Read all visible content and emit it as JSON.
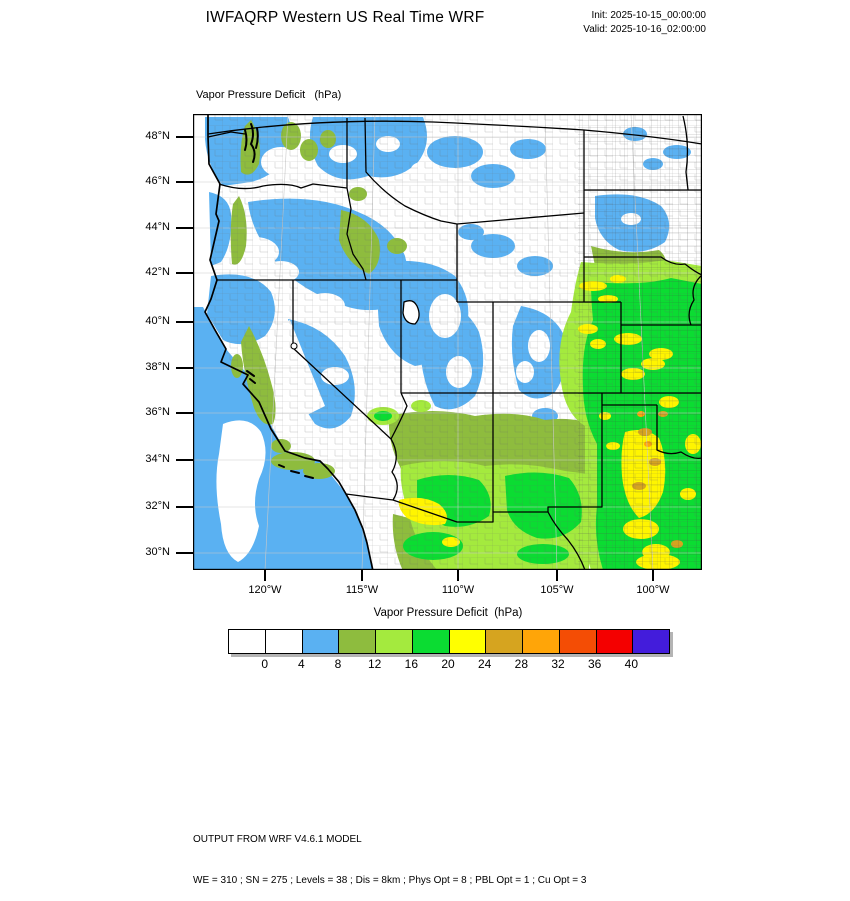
{
  "header": {
    "title": "IWFAQRP Western US Real Time WRF",
    "init_line": "Init: 2025-10-15_00:00:00",
    "valid_line": "Valid: 2025-10-16_02:00:00"
  },
  "plot": {
    "title": "Vapor Pressure Deficit   (hPa)"
  },
  "axes": {
    "lat_tick_labels": [
      "48°N",
      "46°N",
      "44°N",
      "42°N",
      "40°N",
      "38°N",
      "36°N",
      "34°N",
      "32°N",
      "30°N"
    ],
    "lon_tick_labels": [
      "120°W",
      "115°W",
      "110°W",
      "105°W",
      "100°W"
    ]
  },
  "colorbar": {
    "title": "Vapor Pressure Deficit  (hPa)",
    "tick_labels": [
      "0",
      "4",
      "8",
      "12",
      "16",
      "20",
      "24",
      "28",
      "32",
      "36",
      "40"
    ],
    "colors": [
      "#FFFFFF",
      "#FFFFFF",
      "#5AB1F2",
      "#8EBC3E",
      "#A4EA3E",
      "#0BDC32",
      "#FFFF00",
      "#D6A41F",
      "#FFA508",
      "#F44D05",
      "#F40000",
      "#431CDB"
    ]
  },
  "footer": {
    "line1": "OUTPUT FROM WRF V4.6.1 MODEL",
    "line2": "WE = 310 ; SN = 275 ; Levels = 38 ; Dis = 8km ; Phys Opt = 8 ; PBL Opt = 1 ; Cu Opt = 3"
  },
  "chart_data": {
    "type": "heatmap",
    "subtype": "filled-contour-map",
    "variable": "Vapor Pressure Deficit",
    "units": "hPa",
    "title": "IWFAQRP Western US Real Time WRF",
    "model": "WRF V4.6.1",
    "init_time": "2025-10-15_00:00:00",
    "valid_time": "2025-10-16_02:00:00",
    "lat_ticks_deg_n": [
      48,
      46,
      44,
      42,
      40,
      38,
      36,
      34,
      32,
      30
    ],
    "lon_ticks_deg_w": [
      120,
      115,
      110,
      105,
      100
    ],
    "contour_levels_hpa": [
      0,
      4,
      8,
      12,
      16,
      20,
      24,
      28,
      32,
      36,
      40
    ],
    "palette": [
      "#FFFFFF",
      "#FFFFFF",
      "#5AB1F2",
      "#8EBC3E",
      "#A4EA3E",
      "#0BDC32",
      "#FFFF00",
      "#D6A41F",
      "#FFA508",
      "#F44D05",
      "#F40000",
      "#431CDB"
    ],
    "legend_position": "bottom",
    "grid": "light gray graticule every 2 deg lat / 5 deg lon; county and state boundaries overlaid",
    "regions": [
      {
        "area": "Pacific Ocean south of ~40N",
        "value_hpa": "4-8"
      },
      {
        "area": "Offshore marine layer band off central/southern California",
        "value_hpa": "0-4"
      },
      {
        "area": "Western Washington and Puget lowlands",
        "value_hpa": "4-8"
      },
      {
        "area": "Cascades of Washington and Oregon",
        "value_hpa": "8-12"
      },
      {
        "area": "Eastern Oregon, Snake River Plain, Nevada Great Basin",
        "value_hpa": "4-8 with 0-4 pockets"
      },
      {
        "area": "California Central Valley and foothills",
        "value_hpa": "8-12"
      },
      {
        "area": "Sierra Nevada crest",
        "value_hpa": "0-4"
      },
      {
        "area": "Montana and the Dakotas",
        "value_hpa": "0-4 with 4-8 patches (SE South Dakota 4-8)"
      },
      {
        "area": "Wyoming, Colorado Rockies, Utah mountains",
        "value_hpa": "0-8"
      },
      {
        "area": "Nebraska, Kansas, eastern Colorado plains",
        "value_hpa": "16-20 with 20-24 patches"
      },
      {
        "area": "Texas and Oklahoma panhandles",
        "value_hpa": "20-24 with 24-28 spots"
      },
      {
        "area": "Southern Arizona and southern New Mexico",
        "value_hpa": "12-20"
      },
      {
        "area": "Lower Colorado River / southwest Arizona",
        "value_hpa": "20-24"
      }
    ]
  }
}
